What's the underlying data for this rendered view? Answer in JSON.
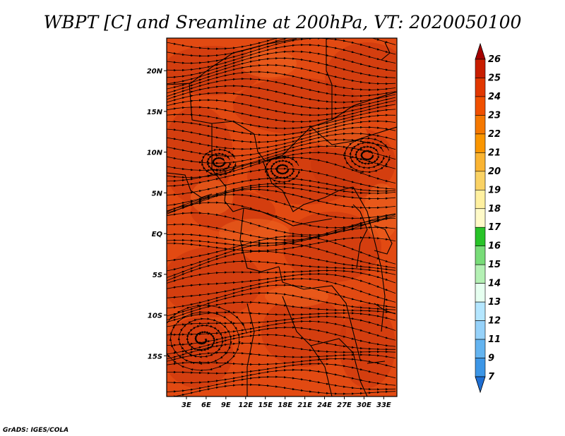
{
  "title": "WBPT [C] and Sreamline at 200hPa, VT: 2020050100",
  "credit": "GrADS: IGES/COLA",
  "lat_labels": [
    {
      "label": "20N",
      "lat": 20
    },
    {
      "label": "15N",
      "lat": 15
    },
    {
      "label": "10N",
      "lat": 10
    },
    {
      "label": "5N",
      "lat": 5
    },
    {
      "label": "EQ",
      "lat": 0
    },
    {
      "label": "5S",
      "lat": -5
    },
    {
      "label": "10S",
      "lat": -10
    },
    {
      "label": "15S",
      "lat": -15
    }
  ],
  "lon_labels": [
    {
      "label": "3E",
      "lon": 3
    },
    {
      "label": "6E",
      "lon": 6
    },
    {
      "label": "9E",
      "lon": 9
    },
    {
      "label": "12E",
      "lon": 12
    },
    {
      "label": "15E",
      "lon": 15
    },
    {
      "label": "18E",
      "lon": 18
    },
    {
      "label": "21E",
      "lon": 21
    },
    {
      "label": "24E",
      "lon": 24
    },
    {
      "label": "27E",
      "lon": 27
    },
    {
      "label": "30E",
      "lon": 30
    },
    {
      "label": "33E",
      "lon": 33
    }
  ],
  "map_extent": {
    "lon_min": 0,
    "lon_max": 35,
    "lat_min": -20,
    "lat_max": 24
  },
  "colorbar": {
    "labels": [
      "26",
      "25",
      "24",
      "23",
      "22",
      "21",
      "20",
      "19",
      "18",
      "17",
      "16",
      "15",
      "14",
      "13",
      "12",
      "11",
      "9",
      "7"
    ],
    "colors": [
      "#a50000",
      "#c81e00",
      "#e13700",
      "#f05000",
      "#f57800",
      "#fa9600",
      "#fab432",
      "#fad264",
      "#fff0a0",
      "#fffac8",
      "#28c328",
      "#78dc78",
      "#b4f0b4",
      "#e6fff0",
      "#b4e6ff",
      "#96d2fa",
      "#64b4f0",
      "#3c96e6",
      "#1e6ed2"
    ]
  },
  "field_colors": {
    "base": "#e24a12",
    "dark": "#c8340c",
    "light": "#ec6420"
  }
}
